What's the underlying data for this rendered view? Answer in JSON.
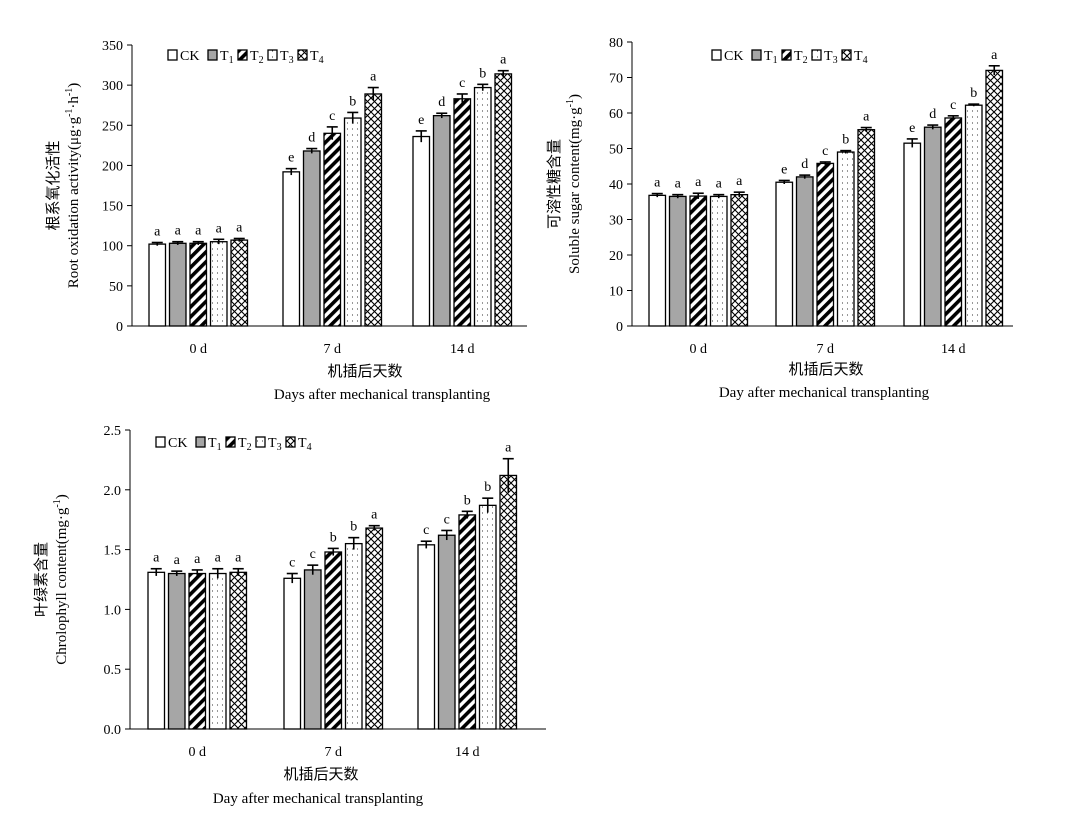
{
  "legend": [
    "CK",
    "T",
    "T",
    "T",
    "T"
  ],
  "legend_subscripts": [
    "",
    "1",
    "2",
    "3",
    "4"
  ],
  "chart_data": [
    {
      "type": "bar",
      "categories": [
        "0 d",
        "7 d",
        "14 d"
      ],
      "ylabel_cn": "根系氧化活性",
      "ylabel_en": "Root oxidation activity(μg·g",
      "ylabel_unit_sup1": "-1",
      "ylabel_unit_mid": "·h",
      "ylabel_unit_sup2": "-1",
      "ylabel_unit_end": ")",
      "xlabel_cn": "机插后天数",
      "xlabel_en": "Days after mechanical transplanting",
      "ylim": [
        0,
        350
      ],
      "yticks": [
        0,
        50,
        100,
        150,
        200,
        250,
        300,
        350
      ],
      "ytick_labels": [
        "0",
        "50",
        "100",
        "150",
        "200",
        "250",
        "300",
        "350"
      ],
      "series": [
        {
          "values": [
            102,
            192,
            236
          ],
          "errors": [
            2,
            4,
            7
          ],
          "letters": [
            "a",
            "e",
            "e"
          ]
        },
        {
          "values": [
            103,
            218,
            262
          ],
          "errors": [
            2,
            3,
            3
          ],
          "letters": [
            "a",
            "d",
            "d"
          ]
        },
        {
          "values": [
            103,
            240,
            283
          ],
          "errors": [
            2,
            8,
            6
          ],
          "letters": [
            "a",
            "c",
            "c"
          ]
        },
        {
          "values": [
            105,
            259,
            297
          ],
          "errors": [
            3,
            7,
            4
          ],
          "letters": [
            "a",
            "b",
            "b"
          ]
        },
        {
          "values": [
            107,
            289,
            314
          ],
          "errors": [
            2,
            8,
            4
          ],
          "letters": [
            "a",
            "a",
            "a"
          ]
        }
      ]
    },
    {
      "type": "bar",
      "categories": [
        "0 d",
        "7 d",
        "14 d"
      ],
      "ylabel_cn": "可溶性糖含量",
      "ylabel_en": "Soluble sugar content(mg·g",
      "ylabel_unit_sup1": "-1",
      "ylabel_unit_mid": "",
      "ylabel_unit_sup2": "",
      "ylabel_unit_end": ")",
      "xlabel_cn": "机插后天数",
      "xlabel_en": "Day after mechanical transplanting",
      "ylim": [
        0,
        80
      ],
      "yticks": [
        0,
        10,
        20,
        30,
        40,
        50,
        60,
        70,
        80
      ],
      "ytick_labels": [
        "0",
        "10",
        "20",
        "30",
        "40",
        "50",
        "60",
        "70",
        "80"
      ],
      "series": [
        {
          "values": [
            36.8,
            40.5,
            51.5
          ],
          "errors": [
            0.5,
            0.5,
            1.2
          ],
          "letters": [
            "a",
            "e",
            "e"
          ]
        },
        {
          "values": [
            36.5,
            42.0,
            56.0
          ],
          "errors": [
            0.5,
            0.5,
            0.6
          ],
          "letters": [
            "a",
            "d",
            "d"
          ]
        },
        {
          "values": [
            36.6,
            45.8,
            58.6
          ],
          "errors": [
            0.8,
            0.4,
            0.6
          ],
          "letters": [
            "a",
            "c",
            "c"
          ]
        },
        {
          "values": [
            36.5,
            49.0,
            62.2
          ],
          "errors": [
            0.5,
            0.4,
            0.3
          ],
          "letters": [
            "a",
            "b",
            "b"
          ]
        },
        {
          "values": [
            37.0,
            55.3,
            72.0
          ],
          "errors": [
            0.7,
            0.6,
            1.3
          ],
          "letters": [
            "a",
            "a",
            "a"
          ]
        }
      ]
    },
    {
      "type": "bar",
      "categories": [
        "0 d",
        "7 d",
        "14 d"
      ],
      "ylabel_cn": "叶绿素含量",
      "ylabel_en": "Chrolophyll content(mg·g",
      "ylabel_unit_sup1": "-1",
      "ylabel_unit_mid": "",
      "ylabel_unit_sup2": "",
      "ylabel_unit_end": ")",
      "xlabel_cn": "机插后天数",
      "xlabel_en": "Day after mechanical transplanting",
      "ylim": [
        0,
        2.5
      ],
      "yticks": [
        0,
        0.5,
        1.0,
        1.5,
        2.0,
        2.5
      ],
      "ytick_labels": [
        "0.0",
        "0.5",
        "1.0",
        "1.5",
        "2.0",
        "2.5"
      ],
      "series": [
        {
          "values": [
            1.31,
            1.26,
            1.54
          ],
          "errors": [
            0.03,
            0.04,
            0.03
          ],
          "letters": [
            "a",
            "c",
            "c"
          ]
        },
        {
          "values": [
            1.3,
            1.33,
            1.62
          ],
          "errors": [
            0.02,
            0.04,
            0.04
          ],
          "letters": [
            "a",
            "c",
            "c"
          ]
        },
        {
          "values": [
            1.3,
            1.48,
            1.79
          ],
          "errors": [
            0.03,
            0.03,
            0.03
          ],
          "letters": [
            "a",
            "b",
            "b"
          ]
        },
        {
          "values": [
            1.3,
            1.55,
            1.87
          ],
          "errors": [
            0.04,
            0.05,
            0.06
          ],
          "letters": [
            "a",
            "b",
            "b"
          ]
        },
        {
          "values": [
            1.31,
            1.68,
            2.12
          ],
          "errors": [
            0.03,
            0.02,
            0.14
          ],
          "letters": [
            "a",
            "a",
            "a"
          ]
        }
      ]
    }
  ]
}
